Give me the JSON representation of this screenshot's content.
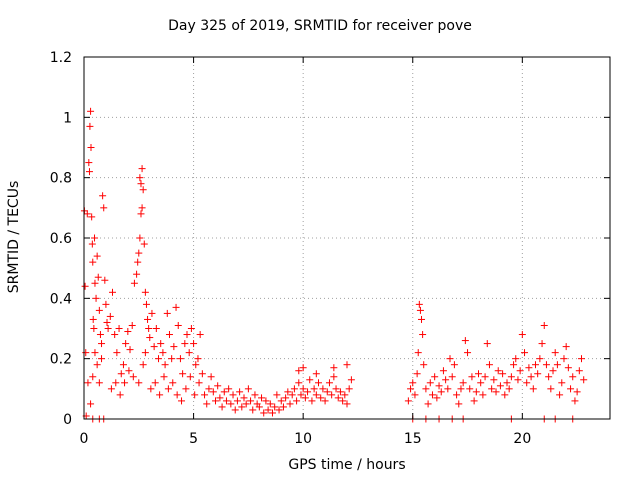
{
  "chart_data": {
    "type": "scatter",
    "title": "Day 325 of 2019, SRMTID for receiver pove",
    "xlabel": "GPS time / hours",
    "ylabel": "SRMTID / TECUs",
    "xlim": [
      0,
      24
    ],
    "ylim": [
      0,
      1.2
    ],
    "xticks": [
      0,
      5,
      10,
      15,
      20
    ],
    "xtick_labels": [
      "0",
      "5",
      "10",
      "15",
      "20"
    ],
    "yticks": [
      0,
      0.2,
      0.4,
      0.6,
      0.8,
      1.0,
      1.2
    ],
    "ytick_labels": [
      "0",
      "0.2",
      "0.4",
      "0.6",
      "0.8",
      "1",
      "1.2"
    ],
    "grid": true,
    "marker": "+",
    "color": "#ff0000",
    "series": [
      {
        "points": [
          [
            0.02,
            0.69
          ],
          [
            0.05,
            0.44
          ],
          [
            0.08,
            0.22
          ],
          [
            0.1,
            0.01
          ],
          [
            0.15,
            0.68
          ],
          [
            0.18,
            0.12
          ],
          [
            0.22,
            0.85
          ],
          [
            0.25,
            0.82
          ],
          [
            0.27,
            0.97
          ],
          [
            0.3,
            1.02
          ],
          [
            0.32,
            0.9
          ],
          [
            0.35,
            0.67
          ],
          [
            0.38,
            0.58
          ],
          [
            0.4,
            0.52
          ],
          [
            0.42,
            0.33
          ],
          [
            0.45,
            0.3
          ],
          [
            0.48,
            0.6
          ],
          [
            0.5,
            0.45
          ],
          [
            0.55,
            0.4
          ],
          [
            0.6,
            0.54
          ],
          [
            0.65,
            0.47
          ],
          [
            0.7,
            0.36
          ],
          [
            0.75,
            0.28
          ],
          [
            0.8,
            0.25
          ],
          [
            0.85,
            0.74
          ],
          [
            0.9,
            0.7
          ],
          [
            0.95,
            0.46
          ],
          [
            1.0,
            0.38
          ],
          [
            1.05,
            0.32
          ],
          [
            1.1,
            0.3
          ],
          [
            0.3,
            0.05
          ],
          [
            0.4,
            0.14
          ],
          [
            0.5,
            0.22
          ],
          [
            0.6,
            0.18
          ],
          [
            0.7,
            0.12
          ],
          [
            0.8,
            0.2
          ],
          [
            1.2,
            0.34
          ],
          [
            1.3,
            0.42
          ],
          [
            1.4,
            0.28
          ],
          [
            1.5,
            0.22
          ],
          [
            1.6,
            0.3
          ],
          [
            1.7,
            0.15
          ],
          [
            1.8,
            0.18
          ],
          [
            1.9,
            0.25
          ],
          [
            2.0,
            0.29
          ],
          [
            2.1,
            0.23
          ],
          [
            2.2,
            0.31
          ],
          [
            2.3,
            0.45
          ],
          [
            1.25,
            0.1
          ],
          [
            1.45,
            0.12
          ],
          [
            1.65,
            0.08
          ],
          [
            1.85,
            0.12
          ],
          [
            2.05,
            0.16
          ],
          [
            2.25,
            0.14
          ],
          [
            2.4,
            0.48
          ],
          [
            2.45,
            0.52
          ],
          [
            2.5,
            0.55
          ],
          [
            2.55,
            0.8
          ],
          [
            2.6,
            0.78
          ],
          [
            2.65,
            0.83
          ],
          [
            2.7,
            0.76
          ],
          [
            2.75,
            0.58
          ],
          [
            2.8,
            0.42
          ],
          [
            2.85,
            0.38
          ],
          [
            2.9,
            0.33
          ],
          [
            2.95,
            0.3
          ],
          [
            2.6,
            0.68
          ],
          [
            2.65,
            0.7
          ],
          [
            2.55,
            0.6
          ],
          [
            2.5,
            0.12
          ],
          [
            2.7,
            0.18
          ],
          [
            2.8,
            0.22
          ],
          [
            3.0,
            0.27
          ],
          [
            3.1,
            0.35
          ],
          [
            3.2,
            0.24
          ],
          [
            3.3,
            0.3
          ],
          [
            3.4,
            0.2
          ],
          [
            3.5,
            0.25
          ],
          [
            3.6,
            0.22
          ],
          [
            3.7,
            0.18
          ],
          [
            3.8,
            0.35
          ],
          [
            3.9,
            0.28
          ],
          [
            4.0,
            0.2
          ],
          [
            4.1,
            0.24
          ],
          [
            3.05,
            0.1
          ],
          [
            3.25,
            0.12
          ],
          [
            3.45,
            0.08
          ],
          [
            3.65,
            0.14
          ],
          [
            3.85,
            0.1
          ],
          [
            4.05,
            0.12
          ],
          [
            4.2,
            0.37
          ],
          [
            4.3,
            0.31
          ],
          [
            4.4,
            0.2
          ],
          [
            4.5,
            0.15
          ],
          [
            4.6,
            0.25
          ],
          [
            4.7,
            0.28
          ],
          [
            4.8,
            0.22
          ],
          [
            4.9,
            0.3
          ],
          [
            5.0,
            0.25
          ],
          [
            5.1,
            0.18
          ],
          [
            5.2,
            0.2
          ],
          [
            5.3,
            0.28
          ],
          [
            4.25,
            0.08
          ],
          [
            4.45,
            0.06
          ],
          [
            4.65,
            0.1
          ],
          [
            4.85,
            0.14
          ],
          [
            5.05,
            0.08
          ],
          [
            5.25,
            0.12
          ],
          [
            5.4,
            0.15
          ],
          [
            5.5,
            0.08
          ],
          [
            5.6,
            0.05
          ],
          [
            5.7,
            0.1
          ],
          [
            5.8,
            0.14
          ],
          [
            5.9,
            0.09
          ],
          [
            6.0,
            0.06
          ],
          [
            6.1,
            0.11
          ],
          [
            6.2,
            0.07
          ],
          [
            6.3,
            0.04
          ],
          [
            6.4,
            0.09
          ],
          [
            6.5,
            0.06
          ],
          [
            6.6,
            0.1
          ],
          [
            6.7,
            0.05
          ],
          [
            6.8,
            0.08
          ],
          [
            6.9,
            0.03
          ],
          [
            7.0,
            0.06
          ],
          [
            7.1,
            0.09
          ],
          [
            7.2,
            0.04
          ],
          [
            7.3,
            0.07
          ],
          [
            7.4,
            0.05
          ],
          [
            7.5,
            0.1
          ],
          [
            7.6,
            0.06
          ],
          [
            7.7,
            0.03
          ],
          [
            7.8,
            0.08
          ],
          [
            7.9,
            0.05
          ],
          [
            8.0,
            0.04
          ],
          [
            8.1,
            0.07
          ],
          [
            8.2,
            0.02
          ],
          [
            8.3,
            0.06
          ],
          [
            8.4,
            0.03
          ],
          [
            8.5,
            0.05
          ],
          [
            8.6,
            0.02
          ],
          [
            8.7,
            0.04
          ],
          [
            8.8,
            0.08
          ],
          [
            8.9,
            0.03
          ],
          [
            9.0,
            0.06
          ],
          [
            9.1,
            0.04
          ],
          [
            9.2,
            0.07
          ],
          [
            9.3,
            0.09
          ],
          [
            9.4,
            0.05
          ],
          [
            9.5,
            0.08
          ],
          [
            9.6,
            0.1
          ],
          [
            9.7,
            0.06
          ],
          [
            9.8,
            0.12
          ],
          [
            9.9,
            0.08
          ],
          [
            10.0,
            0.1
          ],
          [
            10.1,
            0.07
          ],
          [
            10.2,
            0.09
          ],
          [
            10.3,
            0.13
          ],
          [
            10.4,
            0.06
          ],
          [
            10.5,
            0.1
          ],
          [
            10.6,
            0.08
          ],
          [
            10.7,
            0.12
          ],
          [
            10.8,
            0.07
          ],
          [
            10.9,
            0.1
          ],
          [
            11.0,
            0.06
          ],
          [
            11.1,
            0.09
          ],
          [
            11.2,
            0.12
          ],
          [
            11.3,
            0.08
          ],
          [
            11.4,
            0.14
          ],
          [
            11.5,
            0.1
          ],
          [
            11.6,
            0.07
          ],
          [
            11.7,
            0.09
          ],
          [
            11.8,
            0.06
          ],
          [
            11.9,
            0.08
          ],
          [
            12.0,
            0.05
          ],
          [
            12.1,
            0.1
          ],
          [
            12.2,
            0.13
          ],
          [
            9.8,
            0.16
          ],
          [
            10.0,
            0.17
          ],
          [
            10.6,
            0.15
          ],
          [
            11.4,
            0.17
          ],
          [
            12.0,
            0.18
          ],
          [
            14.8,
            0.06
          ],
          [
            14.9,
            0.1
          ],
          [
            15.0,
            0.12
          ],
          [
            15.1,
            0.08
          ],
          [
            15.2,
            0.15
          ],
          [
            15.25,
            0.22
          ],
          [
            15.3,
            0.38
          ],
          [
            15.35,
            0.36
          ],
          [
            15.4,
            0.33
          ],
          [
            15.45,
            0.28
          ],
          [
            15.5,
            0.18
          ],
          [
            15.6,
            0.1
          ],
          [
            15.7,
            0.05
          ],
          [
            15.8,
            0.12
          ],
          [
            15.9,
            0.08
          ],
          [
            16.0,
            0.14
          ],
          [
            16.1,
            0.07
          ],
          [
            16.2,
            0.11
          ],
          [
            16.3,
            0.09
          ],
          [
            16.4,
            0.16
          ],
          [
            16.5,
            0.13
          ],
          [
            16.6,
            0.1
          ],
          [
            16.7,
            0.2
          ],
          [
            16.8,
            0.14
          ],
          [
            16.9,
            0.18
          ],
          [
            17.0,
            0.08
          ],
          [
            17.1,
            0.05
          ],
          [
            17.2,
            0.1
          ],
          [
            17.3,
            0.12
          ],
          [
            17.4,
            0.26
          ],
          [
            17.5,
            0.22
          ],
          [
            17.6,
            0.1
          ],
          [
            17.7,
            0.14
          ],
          [
            17.8,
            0.06
          ],
          [
            17.9,
            0.09
          ],
          [
            18.0,
            0.15
          ],
          [
            18.1,
            0.12
          ],
          [
            18.2,
            0.08
          ],
          [
            18.3,
            0.14
          ],
          [
            18.4,
            0.25
          ],
          [
            18.5,
            0.18
          ],
          [
            18.6,
            0.1
          ],
          [
            18.7,
            0.13
          ],
          [
            18.8,
            0.09
          ],
          [
            18.9,
            0.16
          ],
          [
            19.0,
            0.11
          ],
          [
            19.1,
            0.15
          ],
          [
            19.2,
            0.08
          ],
          [
            19.3,
            0.12
          ],
          [
            19.4,
            0.1
          ],
          [
            19.5,
            0.14
          ],
          [
            19.6,
            0.18
          ],
          [
            19.7,
            0.2
          ],
          [
            19.8,
            0.13
          ],
          [
            19.9,
            0.16
          ],
          [
            20.0,
            0.28
          ],
          [
            20.1,
            0.22
          ],
          [
            20.2,
            0.12
          ],
          [
            20.3,
            0.17
          ],
          [
            20.4,
            0.14
          ],
          [
            20.5,
            0.1
          ],
          [
            20.6,
            0.18
          ],
          [
            20.7,
            0.15
          ],
          [
            20.8,
            0.2
          ],
          [
            20.9,
            0.25
          ],
          [
            21.0,
            0.31
          ],
          [
            21.1,
            0.18
          ],
          [
            21.2,
            0.14
          ],
          [
            21.3,
            0.1
          ],
          [
            21.4,
            0.16
          ],
          [
            21.5,
            0.22
          ],
          [
            21.6,
            0.18
          ],
          [
            21.7,
            0.08
          ],
          [
            21.8,
            0.12
          ],
          [
            21.9,
            0.2
          ],
          [
            22.0,
            0.24
          ],
          [
            22.1,
            0.17
          ],
          [
            22.2,
            0.1
          ],
          [
            22.3,
            0.14
          ],
          [
            22.4,
            0.06
          ],
          [
            22.5,
            0.09
          ],
          [
            22.6,
            0.16
          ],
          [
            22.7,
            0.2
          ],
          [
            22.8,
            0.13
          ],
          [
            15.0,
            0.0
          ],
          [
            15.6,
            0.0
          ],
          [
            16.2,
            0.0
          ],
          [
            16.8,
            0.0
          ],
          [
            17.3,
            0.0
          ],
          [
            19.5,
            0.0
          ],
          [
            21.0,
            0.0
          ],
          [
            21.5,
            0.0
          ],
          [
            22.3,
            0.0
          ],
          [
            0.4,
            0.0
          ],
          [
            0.7,
            0.0
          ],
          [
            0.9,
            0.0
          ]
        ]
      }
    ]
  }
}
